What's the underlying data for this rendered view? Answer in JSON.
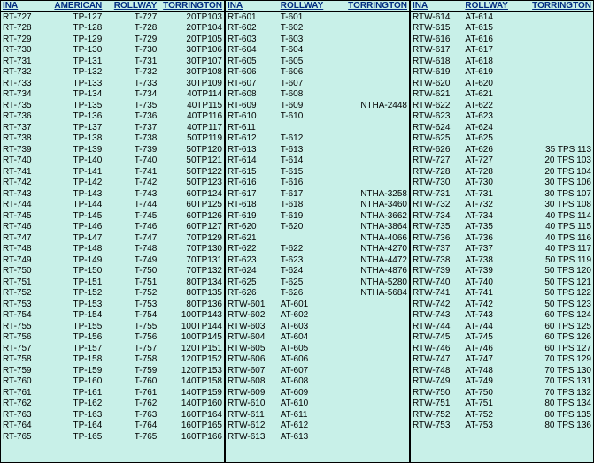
{
  "panels": [
    {
      "headers": [
        "INA",
        "AMERICAN",
        "ROLLWAY",
        "TORRINGTON"
      ],
      "rows": [
        [
          "RT-727",
          "TP-127",
          "T-727",
          "20TP103"
        ],
        [
          "RT-728",
          "TP-128",
          "T-728",
          "20TP104"
        ],
        [
          "RT-729",
          "TP-129",
          "T-729",
          "20TP105"
        ],
        [
          "RT-730",
          "TP-130",
          "T-730",
          "30TP106"
        ],
        [
          "RT-731",
          "TP-131",
          "T-731",
          "30TP107"
        ],
        [
          "RT-732",
          "TP-132",
          "T-732",
          "30TP108"
        ],
        [
          "RT-733",
          "TP-133",
          "T-733",
          "30TP109"
        ],
        [
          "RT-734",
          "TP-134",
          "T-734",
          "40TP114"
        ],
        [
          "RT-735",
          "TP-135",
          "T-735",
          "40TP115"
        ],
        [
          "RT-736",
          "TP-136",
          "T-736",
          "40TP116"
        ],
        [
          "RT-737",
          "TP-137",
          "T-737",
          "40TP117"
        ],
        [
          "RT-738",
          "TP-138",
          "T-738",
          "50TP119"
        ],
        [
          "RT-739",
          "TP-139",
          "T-739",
          "50TP120"
        ],
        [
          "RT-740",
          "TP-140",
          "T-740",
          "50TP121"
        ],
        [
          "RT-741",
          "TP-141",
          "T-741",
          "50TP122"
        ],
        [
          "RT-742",
          "TP-142",
          "T-742",
          "50TP123"
        ],
        [
          "RT-743",
          "TP-143",
          "T-743",
          "60TP124"
        ],
        [
          "RT-744",
          "TP-144",
          "T-744",
          "60TP125"
        ],
        [
          "RT-745",
          "TP-145",
          "T-745",
          "60TP126"
        ],
        [
          "RT-746",
          "TP-146",
          "T-746",
          "60TP127"
        ],
        [
          "RT-747",
          "TP-147",
          "T-747",
          "70TP129"
        ],
        [
          "RT-748",
          "TP-148",
          "T-748",
          "70TP130"
        ],
        [
          "RT-749",
          "TP-149",
          "T-749",
          "70TP131"
        ],
        [
          "RT-750",
          "TP-150",
          "T-750",
          "70TP132"
        ],
        [
          "RT-751",
          "TP-151",
          "T-751",
          "80TP134"
        ],
        [
          "RT-752",
          "TP-152",
          "T-752",
          "80TP135"
        ],
        [
          "RT-753",
          "TP-153",
          "T-753",
          "80TP136"
        ],
        [
          "RT-754",
          "TP-154",
          "T-754",
          "100TP143"
        ],
        [
          "RT-755",
          "TP-155",
          "T-755",
          "100TP144"
        ],
        [
          "RT-756",
          "TP-156",
          "T-756",
          "100TP145"
        ],
        [
          "RT-757",
          "TP-157",
          "T-757",
          "120TP151"
        ],
        [
          "RT-758",
          "TP-158",
          "T-758",
          "120TP152"
        ],
        [
          "RT-759",
          "TP-159",
          "T-759",
          "120TP153"
        ],
        [
          "RT-760",
          "TP-160",
          "T-760",
          "140TP158"
        ],
        [
          "RT-761",
          "TP-161",
          "T-761",
          "140TP159"
        ],
        [
          "RT-762",
          "TP-162",
          "T-762",
          "140TP160"
        ],
        [
          "RT-763",
          "TP-163",
          "T-763",
          "160TP164"
        ],
        [
          "RT-764",
          "TP-164",
          "T-764",
          "160TP165"
        ],
        [
          "RT-765",
          "TP-165",
          "T-765",
          "160TP166"
        ]
      ]
    },
    {
      "headers": [
        "INA",
        "ROLLWAY",
        "TORRINGTON"
      ],
      "rows": [
        [
          "RT-601",
          "T-601",
          ""
        ],
        [
          "RT-602",
          "T-602",
          ""
        ],
        [
          "RT-603",
          "T-603",
          ""
        ],
        [
          "RT-604",
          "T-604",
          ""
        ],
        [
          "RT-605",
          "T-605",
          ""
        ],
        [
          "RT-606",
          "T-606",
          ""
        ],
        [
          "RT-607",
          "T-607",
          ""
        ],
        [
          "RT-608",
          "T-608",
          ""
        ],
        [
          "RT-609",
          "T-609",
          "NTHA-2448"
        ],
        [
          "RT-610",
          "T-610",
          ""
        ],
        [
          "RT-611",
          "",
          ""
        ],
        [
          "RT-612",
          "T-612",
          ""
        ],
        [
          "RT-613",
          "T-613",
          ""
        ],
        [
          "RT-614",
          "T-614",
          ""
        ],
        [
          "RT-615",
          "T-615",
          ""
        ],
        [
          "RT-616",
          "T-616",
          ""
        ],
        [
          "RT-617",
          "T-617",
          "NTHA-3258"
        ],
        [
          "RT-618",
          "T-618",
          "NTHA-3460"
        ],
        [
          "RT-619",
          "T-619",
          "NTHA-3662"
        ],
        [
          "RT-620",
          "T-620",
          "NTHA-3864"
        ],
        [
          "RT-621",
          "",
          "NTHA-4066"
        ],
        [
          "RT-622",
          "T-622",
          "NTHA-4270"
        ],
        [
          "RT-623",
          "T-623",
          "NTHA-4472"
        ],
        [
          "RT-624",
          "T-624",
          "NTHA-4876"
        ],
        [
          "RT-625",
          "T-625",
          "NTHA-5280"
        ],
        [
          "RT-626",
          "T-626",
          "NTHA-5684"
        ],
        [
          "RTW-601",
          "AT-601",
          ""
        ],
        [
          "RTW-602",
          "AT-602",
          ""
        ],
        [
          "RTW-603",
          "AT-603",
          ""
        ],
        [
          "RTW-604",
          "AT-604",
          ""
        ],
        [
          "RTW-605",
          "AT-605",
          ""
        ],
        [
          "RTW-606",
          "AT-606",
          ""
        ],
        [
          "RTW-607",
          "AT-607",
          ""
        ],
        [
          "RTW-608",
          "AT-608",
          ""
        ],
        [
          "RTW-609",
          "AT-609",
          ""
        ],
        [
          "RTW-610",
          "AT-610",
          ""
        ],
        [
          "RTW-611",
          "AT-611",
          ""
        ],
        [
          "RTW-612",
          "AT-612",
          ""
        ],
        [
          "RTW-613",
          "AT-613",
          ""
        ]
      ]
    },
    {
      "headers": [
        "INA",
        "ROLLWAY",
        "TORRINGTON"
      ],
      "rows": [
        [
          "RTW-614",
          "AT-614",
          ""
        ],
        [
          "RTW-615",
          "AT-615",
          ""
        ],
        [
          "RTW-616",
          "AT-616",
          ""
        ],
        [
          "RTW-617",
          "AT-617",
          ""
        ],
        [
          "RTW-618",
          "AT-618",
          ""
        ],
        [
          "RTW-619",
          "AT-619",
          ""
        ],
        [
          "RTW-620",
          "AT-620",
          ""
        ],
        [
          "RTW-621",
          "AT-621",
          ""
        ],
        [
          "RTW-622",
          "AT-622",
          ""
        ],
        [
          "RTW-623",
          "AT-623",
          ""
        ],
        [
          "RTW-624",
          "AT-624",
          ""
        ],
        [
          "RTW-625",
          "AT-625",
          ""
        ],
        [
          "RTW-626",
          "AT-626",
          "35 TPS 113"
        ],
        [
          "RTW-727",
          "AT-727",
          "20 TPS 103"
        ],
        [
          "RTW-728",
          "AT-728",
          "20 TPS 104"
        ],
        [
          "RTW-730",
          "AT-730",
          "30 TPS 106"
        ],
        [
          "RTW-731",
          "AT-731",
          "30 TPS 107"
        ],
        [
          "RTW-732",
          "AT-732",
          "30 TPS 108"
        ],
        [
          "RTW-734",
          "AT-734",
          "40 TPS 114"
        ],
        [
          "RTW-735",
          "AT-735",
          "40 TPS 115"
        ],
        [
          "RTW-736",
          "AT-736",
          "40 TPS 116"
        ],
        [
          "RTW-737",
          "AT-737",
          "40 TPS 117"
        ],
        [
          "RTW-738",
          "AT-738",
          "50 TPS 119"
        ],
        [
          "RTW-739",
          "AT-739",
          "50 TPS 120"
        ],
        [
          "RTW-740",
          "AT-740",
          "50 TPS 121"
        ],
        [
          "RTW-741",
          "AT-741",
          "50 TPS 122"
        ],
        [
          "RTW-742",
          "AT-742",
          "50 TPS 123"
        ],
        [
          "RTW-743",
          "AT-743",
          "60 TPS 124"
        ],
        [
          "RTW-744",
          "AT-744",
          "60 TPS 125"
        ],
        [
          "RTW-745",
          "AT-745",
          "60 TPS 126"
        ],
        [
          "RTW-746",
          "AT-746",
          "60 TPS 127"
        ],
        [
          "RTW-747",
          "AT-747",
          "70 TPS 129"
        ],
        [
          "RTW-748",
          "AT-748",
          "70 TPS 130"
        ],
        [
          "RTW-749",
          "AT-749",
          "70 TPS 131"
        ],
        [
          "RTW-750",
          "AT-750",
          "70 TPS 132"
        ],
        [
          "RTW-751",
          "AT-751",
          "80 TPS 134"
        ],
        [
          "RTW-752",
          "AT-752",
          "80 TPS 135"
        ],
        [
          "RTW-753",
          "AT-753",
          "80 TPS 136"
        ]
      ]
    }
  ]
}
